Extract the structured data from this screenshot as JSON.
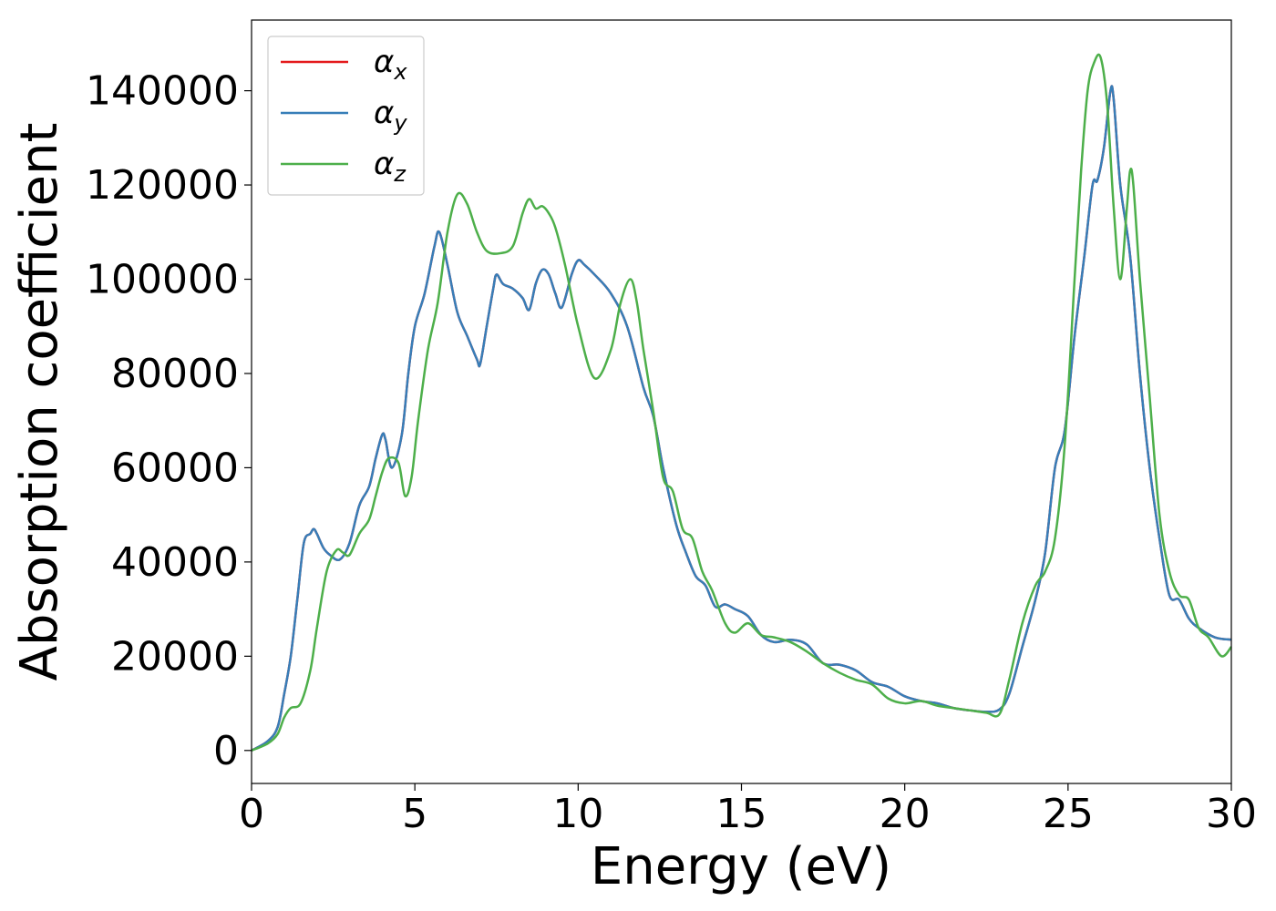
{
  "chart_data": {
    "type": "line",
    "xlabel": "Energy (eV)",
    "ylabel": "Absorption coefficient",
    "xlim": [
      0,
      30
    ],
    "ylim": [
      -7000,
      155000
    ],
    "xticks": [
      0,
      5,
      10,
      15,
      20,
      25,
      30
    ],
    "xtick_labels": [
      "0",
      "5",
      "10",
      "15",
      "20",
      "25",
      "30"
    ],
    "yticks": [
      0,
      20000,
      40000,
      60000,
      80000,
      100000,
      120000,
      140000
    ],
    "ytick_labels": [
      "0",
      "20000",
      "40000",
      "60000",
      "80000",
      "100000",
      "120000",
      "140000"
    ],
    "grid": false,
    "legend": "upper left",
    "series": [
      {
        "name": "αx",
        "legend_base": "α",
        "legend_sub": "x",
        "color": "#e41a1c",
        "x": [
          0,
          0.5,
          0.8,
          1.0,
          1.2,
          1.4,
          1.6,
          1.8,
          1.9,
          2.0,
          2.2,
          2.4,
          2.7,
          3.0,
          3.3,
          3.6,
          3.8,
          4.0,
          4.1,
          4.3,
          4.6,
          4.8,
          5.0,
          5.3,
          5.6,
          5.75,
          6.0,
          6.3,
          6.6,
          6.9,
          7.0,
          7.2,
          7.4,
          7.5,
          7.7,
          8.0,
          8.3,
          8.5,
          8.7,
          8.9,
          9.1,
          9.3,
          9.5,
          9.8,
          10.0,
          10.2,
          10.5,
          11.0,
          11.5,
          12.0,
          12.3,
          12.6,
          13.0,
          13.3,
          13.6,
          13.9,
          14.2,
          14.5,
          14.8,
          15.2,
          15.6,
          16.0,
          16.5,
          17.0,
          17.5,
          18.0,
          18.5,
          19.0,
          19.5,
          20.0,
          20.5,
          21.0,
          21.5,
          22.0,
          22.5,
          22.9,
          23.2,
          23.6,
          24.0,
          24.3,
          24.6,
          24.9,
          25.2,
          25.5,
          25.75,
          25.9,
          26.1,
          26.3,
          26.4,
          26.6,
          26.9,
          27.2,
          27.5,
          27.8,
          28.1,
          28.4,
          28.7,
          29.0,
          29.5,
          30.0
        ],
        "values": [
          0,
          2000,
          5000,
          12000,
          20000,
          32000,
          44000,
          46000,
          47000,
          46000,
          43000,
          41500,
          40500,
          44000,
          52000,
          56000,
          62000,
          67000,
          66000,
          60000,
          67000,
          80000,
          90000,
          97000,
          107000,
          110000,
          103000,
          93000,
          88000,
          83000,
          82000,
          90000,
          98000,
          101000,
          99000,
          98000,
          96000,
          93500,
          99000,
          102000,
          101000,
          97000,
          94000,
          101000,
          104000,
          103000,
          101000,
          97000,
          90000,
          77000,
          71000,
          60000,
          48000,
          42000,
          37000,
          35000,
          30500,
          31000,
          30000,
          28500,
          24500,
          23000,
          23500,
          22500,
          18500,
          18200,
          17000,
          14500,
          13500,
          11500,
          10500,
          10000,
          9000,
          8500,
          8200,
          8700,
          12000,
          22000,
          32000,
          42000,
          60000,
          68000,
          88000,
          105000,
          120000,
          121000,
          128000,
          140000,
          138000,
          120000,
          105000,
          80000,
          60000,
          45000,
          33000,
          32000,
          28000,
          26000,
          24000,
          23500
        ]
      },
      {
        "name": "αy",
        "legend_base": "α",
        "legend_sub": "y",
        "color": "#377eb8",
        "x": [
          0,
          0.5,
          0.8,
          1.0,
          1.2,
          1.4,
          1.6,
          1.8,
          1.9,
          2.0,
          2.2,
          2.4,
          2.7,
          3.0,
          3.3,
          3.6,
          3.8,
          4.0,
          4.1,
          4.3,
          4.6,
          4.8,
          5.0,
          5.3,
          5.6,
          5.75,
          6.0,
          6.3,
          6.6,
          6.9,
          7.0,
          7.2,
          7.4,
          7.5,
          7.7,
          8.0,
          8.3,
          8.5,
          8.7,
          8.9,
          9.1,
          9.3,
          9.5,
          9.8,
          10.0,
          10.2,
          10.5,
          11.0,
          11.5,
          12.0,
          12.3,
          12.6,
          13.0,
          13.3,
          13.6,
          13.9,
          14.2,
          14.5,
          14.8,
          15.2,
          15.6,
          16.0,
          16.5,
          17.0,
          17.5,
          18.0,
          18.5,
          19.0,
          19.5,
          20.0,
          20.5,
          21.0,
          21.5,
          22.0,
          22.5,
          22.9,
          23.2,
          23.6,
          24.0,
          24.3,
          24.6,
          24.9,
          25.2,
          25.5,
          25.75,
          25.9,
          26.1,
          26.3,
          26.4,
          26.6,
          26.9,
          27.2,
          27.5,
          27.8,
          28.1,
          28.4,
          28.7,
          29.0,
          29.5,
          30.0
        ],
        "values": [
          0,
          2000,
          5000,
          12000,
          20000,
          32000,
          44000,
          46000,
          47000,
          46000,
          43000,
          41500,
          40500,
          44000,
          52000,
          56000,
          62000,
          67000,
          66000,
          60000,
          67000,
          80000,
          90000,
          97000,
          107000,
          110000,
          103000,
          93000,
          88000,
          83000,
          82000,
          90000,
          98000,
          101000,
          99000,
          98000,
          96000,
          93500,
          99000,
          102000,
          101000,
          97000,
          94000,
          101000,
          104000,
          103000,
          101000,
          97000,
          90000,
          77000,
          71000,
          60000,
          48000,
          42000,
          37000,
          35000,
          30500,
          31000,
          30000,
          28500,
          24500,
          23000,
          23500,
          22500,
          18500,
          18200,
          17000,
          14500,
          13500,
          11500,
          10500,
          10000,
          9000,
          8500,
          8200,
          8700,
          12000,
          22000,
          32000,
          42000,
          60000,
          68000,
          88000,
          105000,
          120000,
          121000,
          128000,
          140000,
          138000,
          120000,
          105000,
          80000,
          60000,
          45000,
          33000,
          32000,
          28000,
          26000,
          24000,
          23500
        ]
      },
      {
        "name": "αz",
        "legend_base": "α",
        "legend_sub": "z",
        "color": "#4daf4a",
        "x": [
          0,
          0.5,
          0.8,
          1.0,
          1.2,
          1.5,
          1.8,
          2.0,
          2.3,
          2.6,
          2.8,
          3.0,
          3.3,
          3.6,
          3.8,
          4.0,
          4.2,
          4.5,
          4.7,
          4.9,
          5.1,
          5.4,
          5.7,
          6.0,
          6.3,
          6.6,
          6.9,
          7.2,
          7.6,
          8.0,
          8.3,
          8.5,
          8.7,
          8.9,
          9.1,
          9.3,
          9.6,
          10.0,
          10.5,
          11.0,
          11.3,
          11.6,
          11.8,
          12.0,
          12.3,
          12.6,
          12.9,
          13.2,
          13.5,
          13.8,
          14.1,
          14.5,
          14.8,
          15.2,
          15.6,
          16.0,
          16.5,
          17.0,
          17.5,
          18.0,
          18.5,
          19.0,
          19.5,
          20.0,
          20.5,
          21.0,
          21.5,
          22.0,
          22.5,
          22.9,
          23.2,
          23.6,
          24.0,
          24.3,
          24.6,
          24.9,
          25.2,
          25.4,
          25.6,
          25.8,
          26.0,
          26.2,
          26.4,
          26.6,
          26.8,
          26.9,
          27.0,
          27.2,
          27.5,
          27.8,
          28.1,
          28.4,
          28.7,
          29.0,
          29.3,
          29.7,
          30.0
        ],
        "values": [
          0,
          1500,
          3500,
          7000,
          9000,
          10000,
          17000,
          26000,
          38000,
          42500,
          42000,
          41500,
          46000,
          49000,
          54000,
          59000,
          62000,
          61000,
          54000,
          58000,
          70000,
          85000,
          95000,
          110000,
          118000,
          116000,
          110000,
          106000,
          105500,
          107000,
          114000,
          117000,
          115000,
          115500,
          114000,
          111000,
          103000,
          90000,
          79000,
          85000,
          95000,
          100000,
          95000,
          85000,
          72000,
          58000,
          55000,
          47000,
          45000,
          38000,
          34000,
          27000,
          25000,
          27000,
          24500,
          24000,
          23000,
          21000,
          18500,
          16500,
          15000,
          14000,
          11000,
          10000,
          10500,
          9500,
          9000,
          8500,
          8000,
          7700,
          15000,
          27000,
          35000,
          38000,
          45000,
          65000,
          100000,
          123000,
          140000,
          146000,
          147000,
          137000,
          115000,
          100000,
          115000,
          123000,
          120000,
          100000,
          75000,
          50000,
          38000,
          33000,
          32000,
          26000,
          24000,
          20000,
          22000
        ]
      }
    ]
  }
}
